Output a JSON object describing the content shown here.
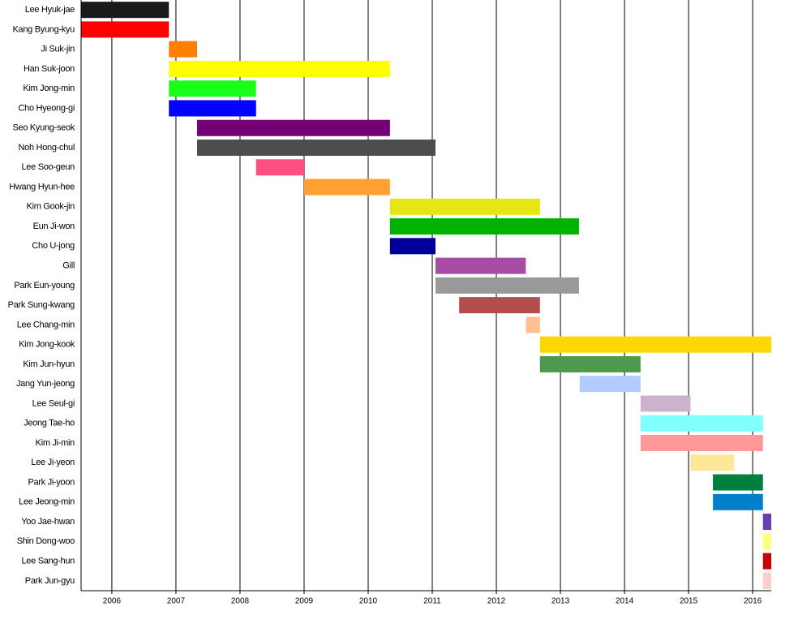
{
  "chart_data": {
    "type": "timeline",
    "categories": [
      "Lee Hyuk-jae",
      "Kang Byung-kyu",
      "Ji Suk-jin",
      "Han Suk-joon",
      "Kim Jong-min",
      "Cho Hyeong-gi",
      "Seo Kyung-seok",
      "Noh Hong-chul",
      "Lee Soo-geun",
      "Hwang Hyun-hee",
      "Kim Gook-jin",
      "Eun Ji-won",
      "Cho U-jong",
      "Gill",
      "Park Eun-young",
      "Park Sung-kwang",
      "Lee Chang-min",
      "Kim Jong-kook",
      "Kim Jun-hyun",
      "Jang Yun-jeong",
      "Lee Seul-gi",
      "Jeong Tae-ho",
      "Kim Ji-min",
      "Lee Ji-yeon",
      "Park Ji-yoon",
      "Lee Jeong-min",
      "Yoo Jae-hwan",
      "Shin Dong-woo",
      "Lee Sang-hun",
      "Park Jun-gyu"
    ],
    "starts": [
      2005.52,
      2005.52,
      2006.89,
      2006.89,
      2006.89,
      2006.89,
      2007.33,
      2007.33,
      2008.25,
      2009.0,
      2010.34,
      2010.34,
      2010.34,
      2011.05,
      2011.05,
      2011.42,
      2012.46,
      2012.68,
      2012.68,
      2013.3,
      2014.25,
      2014.25,
      2014.25,
      2015.03,
      2015.38,
      2015.38,
      2016.16,
      2016.16,
      2016.16,
      2016.16
    ],
    "ends": [
      2006.89,
      2006.89,
      2007.33,
      2010.34,
      2008.25,
      2008.25,
      2010.34,
      2011.05,
      2009.0,
      2010.34,
      2012.68,
      2013.29,
      2011.05,
      2012.46,
      2013.29,
      2012.68,
      2012.68,
      2016.29,
      2014.25,
      2014.25,
      2015.03,
      2016.16,
      2016.16,
      2015.71,
      2016.16,
      2016.16,
      2016.29,
      2016.29,
      2016.29,
      2016.29
    ],
    "colors": [
      "#1a1a1a",
      "#ff0000",
      "#ff8000",
      "#ffff00",
      "#1aff1a",
      "#0000ff",
      "#750075",
      "#4d4d4d",
      "#ff4f80",
      "#ffa030",
      "#e6e614",
      "#00b300",
      "#000099",
      "#a64ca6",
      "#999999",
      "#b34d4d",
      "#ffc090",
      "#ffd700",
      "#4d994d",
      "#b3ccff",
      "#ccb3cc",
      "#80ffff",
      "#ff9999",
      "#ffe699",
      "#008040",
      "#0080cc",
      "#6640b3",
      "#ffff80",
      "#cc0000",
      "#ffcccc"
    ],
    "xlim": [
      2005.52,
      2016.29
    ],
    "xticks": [
      2006,
      2007,
      2008,
      2009,
      2010,
      2011,
      2012,
      2013,
      2014,
      2015,
      2016
    ],
    "grid": true
  }
}
